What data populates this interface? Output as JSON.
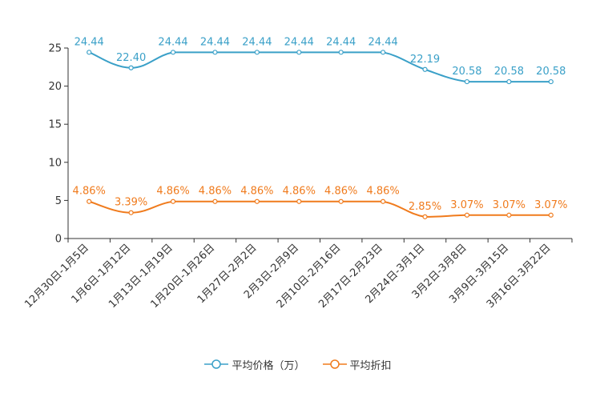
{
  "chart_data": {
    "type": "line",
    "categories": [
      "12月30日-1月5日",
      "1月6日-1月12日",
      "1月13日-1月19日",
      "1月20日-1月26日",
      "1月27日-2月2日",
      "2月3日-2月9日",
      "2月10日-2月16日",
      "2月17日-2月23日",
      "2月24日-3月1日",
      "3月2日-3月8日",
      "3月9日-3月15日",
      "3月16日-3月22日"
    ],
    "ylim": [
      0,
      25
    ],
    "yticks": [
      0,
      5,
      10,
      15,
      20,
      25
    ],
    "series": [
      {
        "name": "平均价格（万）",
        "color": "#3aa0c8",
        "values": [
          24.44,
          22.4,
          24.44,
          24.44,
          24.44,
          24.44,
          24.44,
          24.44,
          22.19,
          20.58,
          20.58,
          20.58
        ],
        "labels": [
          "24.44",
          "22.40",
          "24.44",
          "24.44",
          "24.44",
          "24.44",
          "24.44",
          "24.44",
          "22.19",
          "20.58",
          "20.58",
          "20.58"
        ]
      },
      {
        "name": "平均折扣",
        "color": "#f07b1d",
        "values": [
          4.86,
          3.39,
          4.86,
          4.86,
          4.86,
          4.86,
          4.86,
          4.86,
          2.85,
          3.07,
          3.07,
          3.07
        ],
        "labels": [
          "4.86%",
          "3.39%",
          "4.86%",
          "4.86%",
          "4.86%",
          "4.86%",
          "4.86%",
          "4.86%",
          "2.85%",
          "3.07%",
          "3.07%",
          "3.07%"
        ]
      }
    ]
  }
}
